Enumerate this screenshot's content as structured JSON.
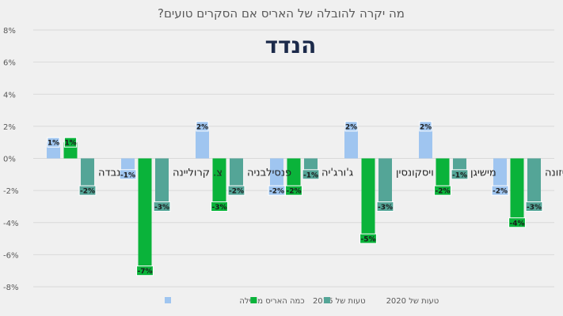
{
  "chart_data": {
    "type": "bar",
    "title": "מה יקרה להובלה של האריס אם הסקרים טועים?",
    "logo_text": "הנדד",
    "categories": [
      "נבדה",
      "צ. קרוליינה",
      "פנסילבניה",
      "ג'ורג'יה",
      "ויסקונסין",
      "מישיגן",
      "אריזונה"
    ],
    "series": [
      {
        "name": "כמה האריס מובילה",
        "color": "#9fc5f0",
        "values": [
          1,
          -1,
          2,
          -2,
          2,
          2,
          -2
        ]
      },
      {
        "name": "טעות של 2016",
        "color": "#0ab33a",
        "values": [
          1,
          -7,
          -3,
          -2,
          -5,
          -2,
          -4
        ]
      },
      {
        "name": "טעות של 2020",
        "color": "#54a597",
        "values": [
          -2,
          -3,
          -2,
          -1,
          -3,
          -1,
          -3
        ]
      }
    ],
    "ylim": [
      -8,
      8
    ],
    "yticks": [
      "-8%",
      "-6%",
      "-4%",
      "-2%",
      "0%",
      "2%",
      "4%",
      "6%",
      "8%"
    ],
    "grid": true,
    "legend_position": "bottom"
  }
}
